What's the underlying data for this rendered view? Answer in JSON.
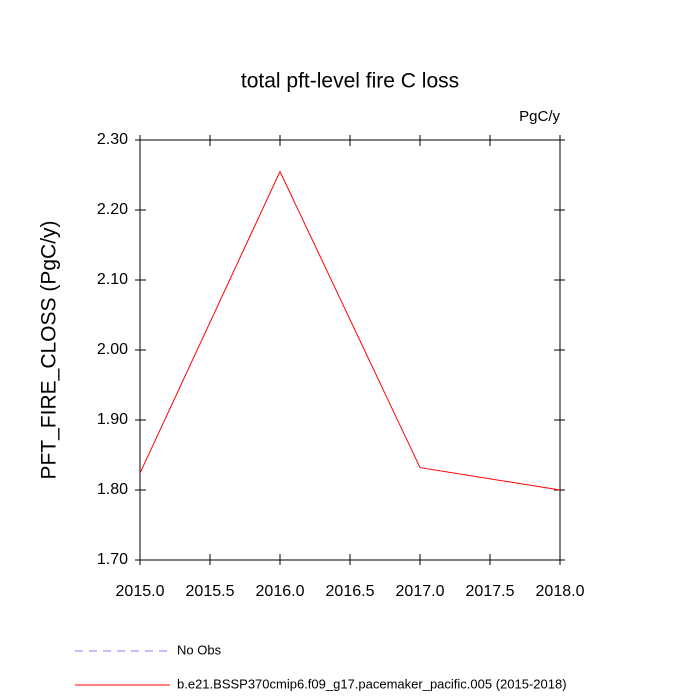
{
  "chart_data": {
    "type": "line",
    "title": "total pft-level fire C loss",
    "units": "PgC/y",
    "y_label": "PFT_FIRE_CLOSS  (PgC/y)",
    "x": [
      2015,
      2016,
      2017,
      2018
    ],
    "series": [
      {
        "name": "No Obs",
        "color": "#8080ff",
        "dashed": true,
        "values": [
          null,
          null,
          null,
          null
        ]
      },
      {
        "name": "b.e21.BSSP370cmip6.f09_g17.pacemaker_pacific.005 (2015-2018)",
        "color": "#ff0000",
        "dashed": false,
        "values": [
          1.824,
          2.255,
          1.832,
          1.8
        ]
      }
    ],
    "xlim": [
      2015,
      2018
    ],
    "xticks": [
      {
        "value": 2015,
        "label": "2015.0"
      },
      {
        "value": 2015.5,
        "label": "2015.5"
      },
      {
        "value": 2016,
        "label": "2016.0"
      },
      {
        "value": 2016.5,
        "label": "2016.5"
      },
      {
        "value": 2017,
        "label": "2017.0"
      },
      {
        "value": 2017.5,
        "label": "2017.5"
      },
      {
        "value": 2018,
        "label": "2018.0"
      }
    ],
    "ylim": [
      1.7,
      2.3
    ],
    "yticks": [
      {
        "value": 1.7,
        "label": "1.70"
      },
      {
        "value": 1.8,
        "label": "1.80"
      },
      {
        "value": 1.9,
        "label": "1.90"
      },
      {
        "value": 2.0,
        "label": "2.00"
      },
      {
        "value": 2.1,
        "label": "2.10"
      },
      {
        "value": 2.2,
        "label": "2.20"
      },
      {
        "value": 2.3,
        "label": "2.30"
      }
    ]
  }
}
